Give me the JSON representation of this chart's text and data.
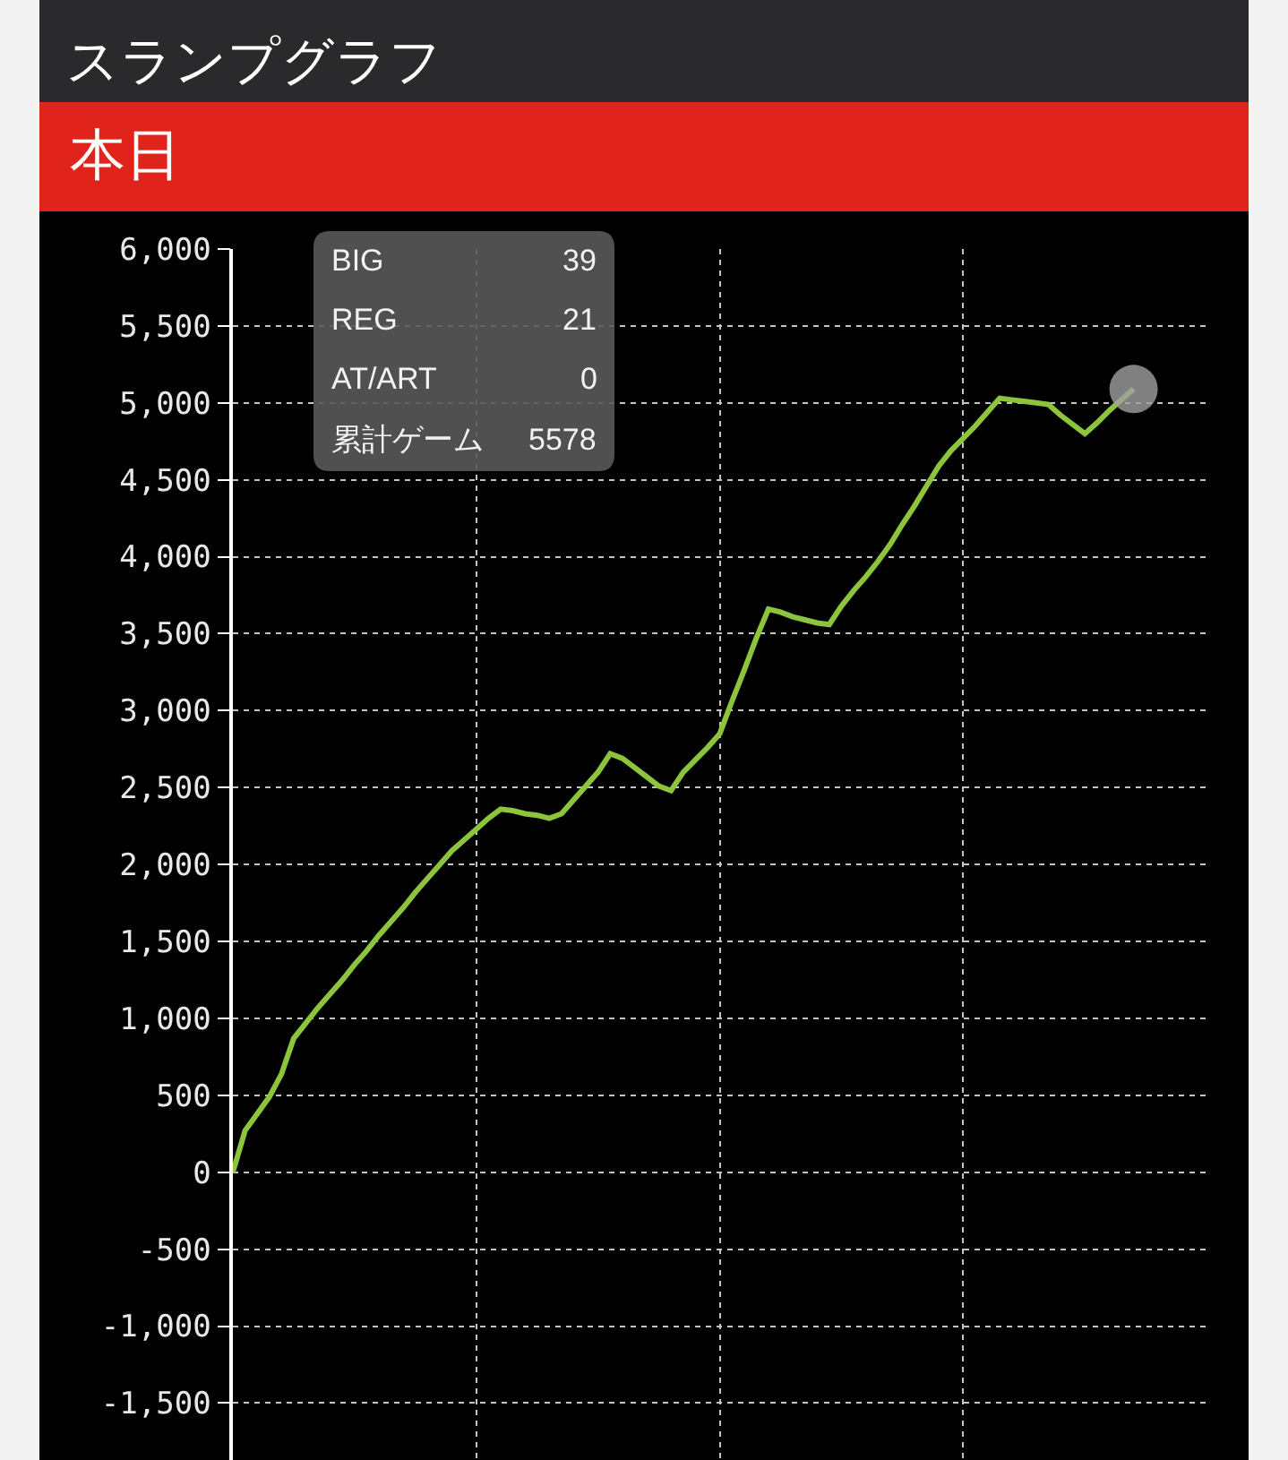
{
  "chart_data": {
    "type": "line",
    "title": "スランプグラフ",
    "subtitle": "本日",
    "categories": [
      null,
      null,
      null,
      null,
      null,
      null,
      null,
      null,
      null,
      null,
      null,
      null,
      null,
      null,
      null,
      null,
      null,
      null,
      null,
      null,
      null,
      null,
      null,
      null,
      null,
      null,
      null,
      null,
      null,
      null,
      null,
      null,
      null,
      null,
      null,
      null,
      null,
      null,
      null,
      null,
      null,
      null,
      null,
      null,
      null,
      null,
      null,
      null,
      null,
      null,
      null,
      null,
      null,
      null,
      null,
      null,
      null,
      null,
      null,
      null,
      null,
      null,
      null,
      null,
      null,
      null,
      null,
      null,
      null,
      null,
      null,
      null,
      null,
      null,
      null,
      null,
      null,
      null,
      null,
      null,
      null
    ],
    "series": [
      {
        "color": "#8cc43c",
        "values": [
          0,
          270,
          380,
          490,
          640,
          870,
          970,
          1070,
          1160,
          1250,
          1350,
          1440,
          1540,
          1630,
          1720,
          1820,
          1910,
          2000,
          2090,
          2160,
          2230,
          2300,
          2360,
          2350,
          2330,
          2320,
          2300,
          2330,
          2420,
          2510,
          2600,
          2720,
          2690,
          2630,
          2570,
          2510,
          2480,
          2600,
          2680,
          2760,
          2850,
          3060,
          3260,
          3470,
          3660,
          3640,
          3610,
          3590,
          3570,
          3560,
          3680,
          3780,
          3870,
          3970,
          4080,
          4210,
          4330,
          4460,
          4590,
          4690,
          4770,
          4850,
          4940,
          5030,
          5020,
          5010,
          5000,
          4990,
          4920,
          4860,
          4800,
          4870,
          4950,
          5020,
          5090,
          null,
          null,
          null,
          null,
          null,
          null
        ]
      },
      {
        "type": "scatter",
        "color": "#a0a0a0",
        "marker": "circle",
        "values": [
          null,
          null,
          null,
          null,
          null,
          null,
          null,
          null,
          null,
          null,
          null,
          null,
          null,
          null,
          null,
          null,
          null,
          null,
          null,
          null,
          null,
          null,
          null,
          null,
          null,
          null,
          null,
          null,
          null,
          null,
          null,
          null,
          null,
          null,
          null,
          null,
          null,
          null,
          null,
          null,
          null,
          null,
          null,
          null,
          null,
          null,
          null,
          null,
          null,
          null,
          null,
          null,
          null,
          null,
          null,
          null,
          null,
          null,
          null,
          null,
          null,
          null,
          null,
          null,
          null,
          null,
          null,
          null,
          null,
          null,
          null,
          null,
          null,
          null,
          5090,
          null,
          null,
          null,
          null,
          null,
          null
        ]
      }
    ],
    "ylim": [
      -1870,
      6000
    ],
    "yticks": [
      {
        "value": 6000,
        "label": "6,000"
      },
      {
        "value": 5500,
        "label": "5,500"
      },
      {
        "value": 5000,
        "label": "5,000"
      },
      {
        "value": 4500,
        "label": "4,500"
      },
      {
        "value": 4000,
        "label": "4,000"
      },
      {
        "value": 3500,
        "label": "3,500"
      },
      {
        "value": 3000,
        "label": "3,000"
      },
      {
        "value": 2500,
        "label": "2,500"
      },
      {
        "value": 2000,
        "label": "2,000"
      },
      {
        "value": 1500,
        "label": "1,500"
      },
      {
        "value": 1000,
        "label": "1,000"
      },
      500,
      0,
      -500,
      {
        "value": -1000,
        "label": "-1,000"
      },
      {
        "value": -1500,
        "label": "-1,500"
      }
    ],
    "grid": true,
    "tick_labels": "y",
    "annotations": [
      "BIG",
      "39",
      "REG",
      "21",
      "AT/ART",
      "0",
      "累計ゲーム",
      "5578"
    ]
  }
}
